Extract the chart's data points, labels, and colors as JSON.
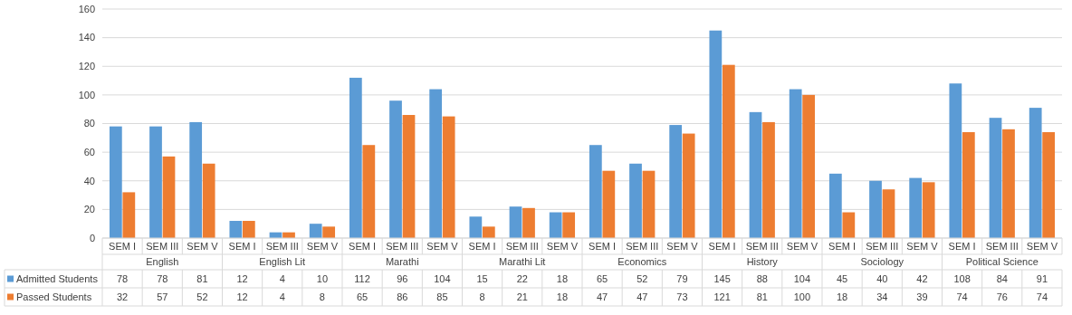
{
  "chart_data": {
    "type": "bar",
    "categories": [
      "SEM I",
      "SEM III",
      "SEM V",
      "SEM I",
      "SEM III",
      "SEM V",
      "SEM I",
      "SEM III",
      "SEM V",
      "SEM I",
      "SEM III",
      "SEM V",
      "SEM I",
      "SEM III",
      "SEM V",
      "SEM I",
      "SEM III",
      "SEM V",
      "SEM I",
      "SEM III",
      "SEM V",
      "SEM I",
      "SEM III",
      "SEM V"
    ],
    "annotations": [
      "English",
      "English Lit",
      "Marathi",
      "Marathi Lit",
      "Economics",
      "History",
      "Sociology",
      "Political Science"
    ],
    "series": [
      {
        "name": "Admitted Students",
        "color": "#5b9bd5",
        "values": [
          78,
          78,
          81,
          12,
          4,
          10,
          112,
          96,
          104,
          15,
          22,
          18,
          65,
          52,
          79,
          145,
          88,
          104,
          45,
          40,
          42,
          108,
          84,
          91
        ]
      },
      {
        "name": "Passed Students",
        "color": "#ed7d31",
        "values": [
          32,
          57,
          52,
          12,
          4,
          8,
          65,
          86,
          85,
          8,
          21,
          18,
          47,
          47,
          73,
          121,
          81,
          100,
          18,
          34,
          39,
          74,
          76,
          74
        ]
      }
    ],
    "ylim": [
      0,
      160
    ],
    "yticks": [
      0,
      20,
      40,
      60,
      80,
      100,
      120,
      140,
      160
    ],
    "grid": "y",
    "legend": "bottom",
    "data_labels": true
  }
}
